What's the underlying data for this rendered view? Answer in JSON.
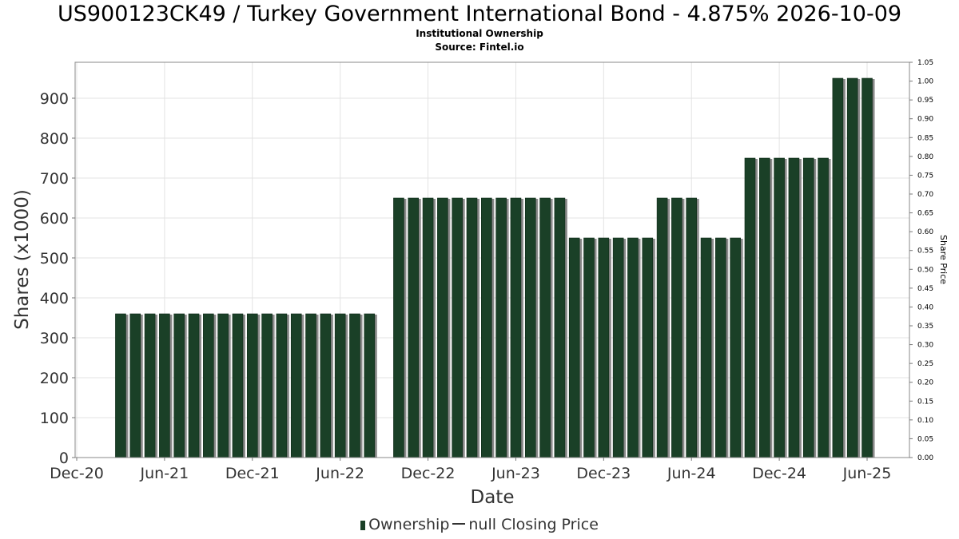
{
  "chart_data": {
    "type": "bar",
    "title": "US900123CK49 / Turkey Government International Bond - 4.875% 2026-10-09",
    "subtitles": [
      "Institutional Ownership",
      "Source: Fintel.io"
    ],
    "xlabel": "Date",
    "ylabel": "Shares (x1000)",
    "y2label": "Share Price",
    "ylim": [
      0,
      990
    ],
    "yticks": [
      0,
      100,
      200,
      300,
      400,
      500,
      600,
      700,
      800,
      900
    ],
    "y2lim": [
      0,
      1.05
    ],
    "y2ticks": [
      "0.00",
      "0.05",
      "0.10",
      "0.15",
      "0.20",
      "0.25",
      "0.30",
      "0.35",
      "0.40",
      "0.45",
      "0.50",
      "0.55",
      "0.60",
      "0.65",
      "0.70",
      "0.75",
      "0.80",
      "0.85",
      "0.90",
      "0.95",
      "1.00",
      "1.05"
    ],
    "xticks": [
      "Dec-20",
      "Jun-21",
      "Dec-21",
      "Jun-22",
      "Dec-22",
      "Jun-23",
      "Dec-23",
      "Jun-24",
      "Dec-24",
      "Jun-25"
    ],
    "grid": true,
    "legend_position": "bottom",
    "series": [
      {
        "name": "Ownership",
        "color": "#1a4027",
        "x": [
          "2021-03",
          "2021-04",
          "2021-05",
          "2021-06",
          "2021-07",
          "2021-08",
          "2021-09",
          "2021-10",
          "2021-11",
          "2021-12",
          "2022-01",
          "2022-02",
          "2022-03",
          "2022-04",
          "2022-05",
          "2022-06",
          "2022-07",
          "2022-08",
          "2022-10",
          "2022-11",
          "2022-12",
          "2023-01",
          "2023-02",
          "2023-03",
          "2023-04",
          "2023-05",
          "2023-06",
          "2023-07",
          "2023-08",
          "2023-09",
          "2023-10",
          "2023-11",
          "2023-12",
          "2024-01",
          "2024-02",
          "2024-03",
          "2024-04",
          "2024-05",
          "2024-06",
          "2024-07",
          "2024-08",
          "2024-09",
          "2024-10",
          "2024-11",
          "2024-12",
          "2025-01",
          "2025-02",
          "2025-03",
          "2025-04",
          "2025-05",
          "2025-06"
        ],
        "values": [
          360,
          360,
          360,
          360,
          360,
          360,
          360,
          360,
          360,
          360,
          360,
          360,
          360,
          360,
          360,
          360,
          360,
          360,
          650,
          650,
          650,
          650,
          650,
          650,
          650,
          650,
          650,
          650,
          650,
          650,
          550,
          550,
          550,
          550,
          550,
          550,
          650,
          650,
          650,
          550,
          550,
          550,
          750,
          750,
          750,
          750,
          750,
          750,
          950,
          950,
          950
        ]
      }
    ],
    "legend": [
      "Ownership",
      "null Closing Price"
    ]
  }
}
